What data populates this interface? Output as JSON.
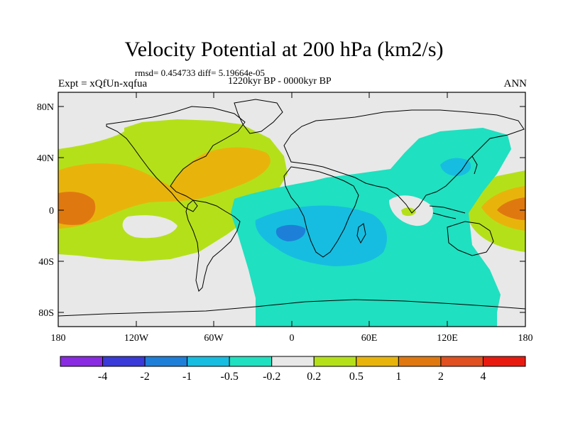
{
  "title": "Velocity Potential at 200 hPa (km2/s)",
  "stats": "rmsd= 0.454733 diff= 5.19664e-05",
  "period": "1220kyr BP - 0000kyr BP",
  "experiment": "Expt = xQfUn-xqfua",
  "season": "ANN",
  "lat_ticks": [
    "80N",
    "40N",
    "0",
    "40S",
    "80S"
  ],
  "lon_ticks": [
    "180",
    "120W",
    "60W",
    "0",
    "60E",
    "120E",
    "180"
  ],
  "colorbar": {
    "labels": [
      "-4",
      "-2",
      "-1",
      "-0.5",
      "-0.2",
      "0.2",
      "0.5",
      "1",
      "2",
      "4"
    ],
    "colors": [
      "#8a2be2",
      "#3a3ad8",
      "#1e7fd8",
      "#16bde0",
      "#1fe0c0",
      "#e8e8e8",
      "#b4e01a",
      "#e8b40c",
      "#e07810",
      "#e05020",
      "#e81a10"
    ]
  },
  "map_colors": {
    "ocean_neutral": "#e8e8e8",
    "coast": "#000000"
  }
}
